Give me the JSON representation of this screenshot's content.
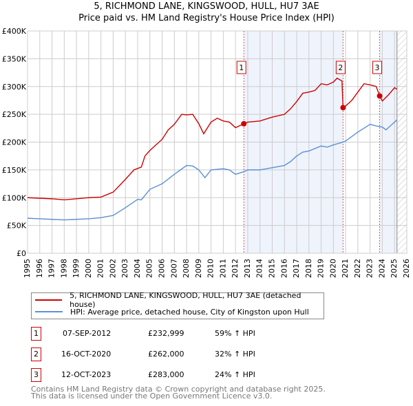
{
  "chart_data": {
    "type": "line",
    "title": "5, RICHMOND LANE, KINGSWOOD, HULL, HU7 3AE",
    "subtitle": "Price paid vs. HM Land Registry's House Price Index (HPI)",
    "xlim": [
      1995,
      2026
    ],
    "ylim": [
      0,
      400000
    ],
    "x_ticks": [
      "1995",
      "1996",
      "1997",
      "1998",
      "1999",
      "2000",
      "2001",
      "2002",
      "2003",
      "2004",
      "2005",
      "2006",
      "2007",
      "2008",
      "2009",
      "2010",
      "2011",
      "2012",
      "2013",
      "2014",
      "2015",
      "2016",
      "2017",
      "2018",
      "2019",
      "2020",
      "2021",
      "2022",
      "2023",
      "2024",
      "2025",
      "2026"
    ],
    "y_ticks": [
      {
        "v": 0,
        "label": "£0"
      },
      {
        "v": 50000,
        "label": "£50K"
      },
      {
        "v": 100000,
        "label": "£100K"
      },
      {
        "v": 150000,
        "label": "£150K"
      },
      {
        "v": 200000,
        "label": "£200K"
      },
      {
        "v": 250000,
        "label": "£250K"
      },
      {
        "v": 300000,
        "label": "£300K"
      },
      {
        "v": 350000,
        "label": "£350K"
      },
      {
        "v": 400000,
        "label": "£400K"
      }
    ],
    "grid": true,
    "series": [
      {
        "name": "5, RICHMOND LANE, KINGSWOOD, HULL, HU7 3AE (detached house)",
        "color": "#cc0000",
        "x": [
          1995,
          1997,
          1998,
          1999,
          2000,
          2001,
          2002,
          2003,
          2003.7,
          2004.3,
          2004.6,
          2005,
          2006,
          2006.5,
          2007,
          2007.6,
          2008,
          2008.5,
          2009,
          2009.4,
          2010,
          2010.5,
          2011,
          2011.5,
          2012,
          2012.68,
          2013,
          2014,
          2015,
          2016,
          2016.5,
          2017,
          2017.5,
          2018,
          2018.5,
          2019,
          2019.5,
          2020,
          2020.3,
          2020.7,
          2020.79,
          2021,
          2021.5,
          2022,
          2022.5,
          2023,
          2023.5,
          2023.78,
          2024,
          2024.5,
          2025,
          2025.2
        ],
        "y": [
          100000,
          98000,
          96000,
          98000,
          100000,
          101000,
          110000,
          133000,
          150000,
          155000,
          175000,
          185000,
          205000,
          222000,
          232000,
          250000,
          249000,
          250000,
          233000,
          215000,
          236000,
          243000,
          238000,
          236000,
          226000,
          232999,
          236000,
          238000,
          245000,
          250000,
          260000,
          273000,
          288000,
          290000,
          293000,
          305000,
          303000,
          308000,
          315000,
          310000,
          262000,
          265000,
          275000,
          290000,
          305000,
          303000,
          300000,
          283000,
          274000,
          285000,
          298000,
          295000
        ]
      },
      {
        "name": "HPI: Average price, detached house, City of Kingston upon Hull",
        "color": "#5b8fd4",
        "x": [
          1995,
          1996,
          1997,
          1998,
          1999,
          2000,
          2001,
          2002,
          2003,
          2004,
          2004.3,
          2005,
          2006,
          2007,
          2007.5,
          2008,
          2008.5,
          2009,
          2009.5,
          2010,
          2011,
          2011.5,
          2012,
          2012.7,
          2013,
          2014,
          2015,
          2016,
          2016.5,
          2017,
          2017.5,
          2018,
          2019,
          2019.5,
          2020,
          2020.8,
          2021,
          2022,
          2022.5,
          2023,
          2023.5,
          2024,
          2024.3,
          2024.8,
          2025.2
        ],
        "y": [
          63000,
          62000,
          61000,
          60000,
          61000,
          62000,
          64000,
          68000,
          82000,
          97000,
          96000,
          115000,
          125000,
          142000,
          150000,
          158000,
          157000,
          150000,
          136000,
          150000,
          152000,
          150000,
          142000,
          147000,
          150000,
          150000,
          154000,
          158000,
          165000,
          175000,
          182000,
          184000,
          193000,
          191000,
          195000,
          200000,
          202000,
          218000,
          225000,
          232000,
          229000,
          227000,
          222000,
          232000,
          240000
        ]
      }
    ],
    "sales": [
      {
        "n": "1",
        "x": 2012.68,
        "date": "07-SEP-2012",
        "price": "£232,999",
        "y": 232999,
        "hpi": "59% ↑ HPI"
      },
      {
        "n": "2",
        "x": 2020.79,
        "date": "16-OCT-2020",
        "price": "£262,000",
        "y": 262000,
        "hpi": "32% ↑ HPI"
      },
      {
        "n": "3",
        "x": 2023.78,
        "date": "12-OCT-2023",
        "price": "£283,000",
        "y": 283000,
        "hpi": "24% ↑ HPI"
      }
    ],
    "shaded_ranges": [
      [
        2012.68,
        2020.79
      ],
      [
        2023.78,
        2025.2
      ]
    ],
    "forecast_from": 2025.2,
    "legend_position": "bottom"
  },
  "footer": {
    "line1": "Contains HM Land Registry data © Crown copyright and database right 2025.",
    "line2": "This data is licensed under the Open Government Licence v3.0."
  }
}
